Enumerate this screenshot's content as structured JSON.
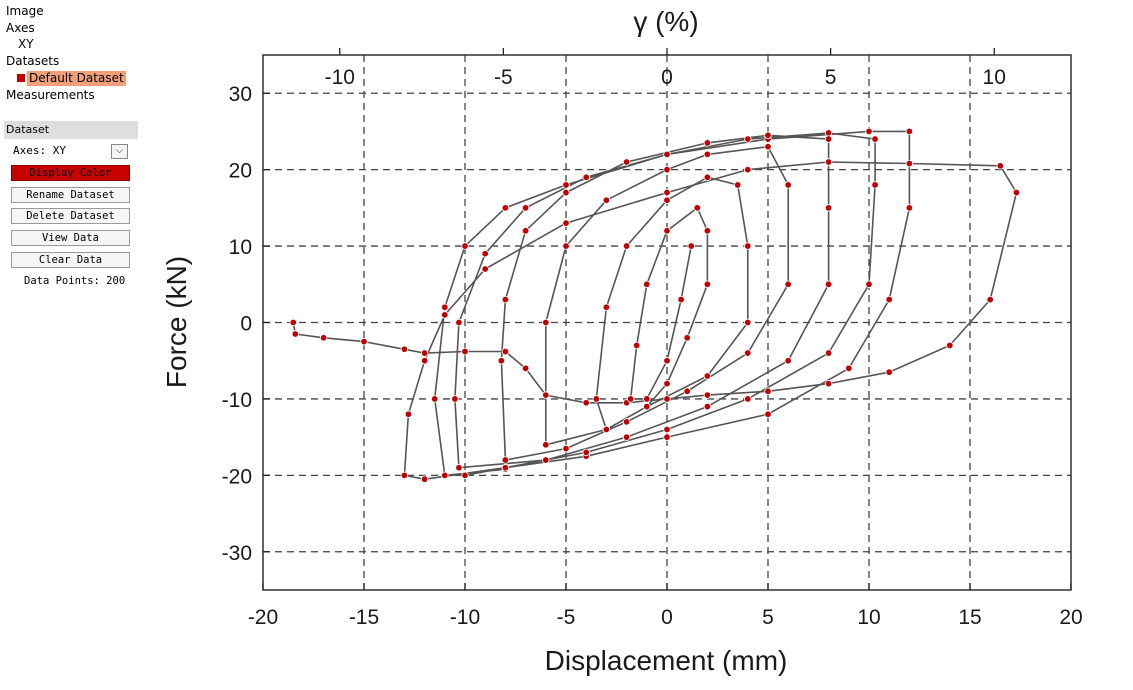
{
  "sidebar": {
    "tree": {
      "image": "Image",
      "axes": "Axes",
      "axes_xy": "XY",
      "datasets": "Datasets",
      "default_dataset": "Default Dataset",
      "measurements": "Measurements"
    },
    "panel": {
      "title": "Dataset",
      "axes_label": "Axes:",
      "axes_value": "XY",
      "display_color": "Display Color",
      "rename": "Rename Dataset",
      "delete": "Delete Dataset",
      "view": "View Data",
      "clear": "Clear Data",
      "data_points": "Data Points: 200"
    },
    "dataset_color": "#c00000"
  },
  "chart_data": {
    "type": "line",
    "xlabel": "Displacement (mm)",
    "ylabel": "Force (kN)",
    "top_label": "γ (%)",
    "xlim": [
      -20,
      20
    ],
    "ylim": [
      -35,
      35
    ],
    "x_ticks": [
      -20,
      -15,
      -10,
      -5,
      0,
      5,
      10,
      15,
      20
    ],
    "y_ticks": [
      -30,
      -20,
      -10,
      0,
      10,
      20,
      30
    ],
    "top_ticks": [
      -10,
      -5,
      0,
      5,
      10
    ],
    "top_axis_scale": "gamma = displacement / 1.62",
    "grid": true,
    "series": [
      {
        "values_xy": [
          [
            -18.5,
            0
          ],
          [
            -18.4,
            -1.5
          ],
          [
            -17,
            -2
          ],
          [
            -15,
            -2.5
          ],
          [
            -13,
            -3.5
          ],
          [
            -12,
            -4
          ],
          [
            -10,
            -3.8
          ],
          [
            -8,
            -3.8
          ],
          [
            -7,
            -6
          ],
          [
            -6,
            -9.5
          ],
          [
            -4,
            -10.5
          ],
          [
            -2,
            -10.5
          ],
          [
            0,
            -10
          ],
          [
            2,
            -9.5
          ],
          [
            5,
            -9
          ],
          [
            8,
            -8
          ],
          [
            11,
            -6.5
          ],
          [
            14,
            -3
          ],
          [
            16,
            3
          ],
          [
            17.3,
            17
          ],
          [
            16.5,
            20.5
          ],
          [
            12,
            20.8
          ],
          [
            8,
            21
          ],
          [
            4,
            20
          ],
          [
            0,
            17
          ],
          [
            -5,
            13
          ],
          [
            -9,
            7
          ],
          [
            -11,
            1
          ],
          [
            -12,
            -5
          ],
          [
            -12.8,
            -12
          ],
          [
            -13,
            -20
          ],
          [
            -12,
            -20.5
          ],
          [
            -8,
            -19
          ],
          [
            -4,
            -17.5
          ],
          [
            0,
            -15
          ],
          [
            5,
            -12
          ],
          [
            9,
            -6
          ],
          [
            11,
            3
          ],
          [
            12,
            15
          ],
          [
            12,
            25
          ],
          [
            10,
            25
          ],
          [
            5,
            24
          ],
          [
            0,
            22
          ],
          [
            -5,
            18
          ],
          [
            -8,
            15
          ],
          [
            -10,
            10
          ],
          [
            -11,
            2
          ],
          [
            -11.5,
            -10
          ],
          [
            -11,
            -20
          ],
          [
            -8,
            -19.2
          ]
        ]
      },
      {
        "values_xy": [
          [
            -10,
            -20
          ],
          [
            -8,
            -19
          ],
          [
            -4,
            -17
          ],
          [
            0,
            -14
          ],
          [
            4,
            -10
          ],
          [
            8,
            -4
          ],
          [
            10,
            5
          ],
          [
            10.3,
            18
          ],
          [
            10.3,
            24
          ],
          [
            8,
            24.8
          ],
          [
            4,
            24
          ],
          [
            0,
            22
          ],
          [
            -4,
            19
          ],
          [
            -7,
            15
          ],
          [
            -9,
            9
          ],
          [
            -10.3,
            0
          ],
          [
            -10.5,
            -10
          ],
          [
            -10.3,
            -19
          ],
          [
            -6,
            -18
          ],
          [
            -2,
            -15
          ],
          [
            2,
            -11
          ],
          [
            6,
            -5
          ],
          [
            8,
            5
          ],
          [
            8,
            15
          ],
          [
            8,
            24
          ],
          [
            5,
            24.5
          ],
          [
            2,
            23.5
          ],
          [
            -2,
            21
          ],
          [
            -5,
            17
          ],
          [
            -7,
            12
          ],
          [
            -8,
            3
          ],
          [
            -8.2,
            -5
          ],
          [
            -8,
            -18
          ],
          [
            -5,
            -16.5
          ],
          [
            -2,
            -13
          ],
          [
            1,
            -9
          ],
          [
            4,
            -4
          ],
          [
            6,
            5
          ],
          [
            6,
            18
          ],
          [
            5,
            23
          ],
          [
            2,
            22
          ],
          [
            0,
            20
          ],
          [
            -3,
            16
          ],
          [
            -5,
            10
          ],
          [
            -6,
            0
          ],
          [
            -6,
            -16
          ],
          [
            -3,
            -14
          ],
          [
            -1,
            -11
          ],
          [
            2,
            -7
          ],
          [
            4,
            0
          ],
          [
            4,
            10
          ],
          [
            3.5,
            18
          ],
          [
            2,
            19
          ],
          [
            0,
            16
          ],
          [
            -2,
            10
          ],
          [
            -3,
            2
          ],
          [
            -3.5,
            -10
          ],
          [
            -3,
            -14
          ],
          [
            -1,
            -11
          ],
          [
            0,
            -8
          ],
          [
            1,
            -2
          ],
          [
            2,
            5
          ],
          [
            2,
            12
          ],
          [
            1.5,
            15
          ],
          [
            0,
            12
          ],
          [
            -1,
            5
          ],
          [
            -1.5,
            -3
          ],
          [
            -1.8,
            -10
          ],
          [
            -1,
            -10
          ],
          [
            0,
            -5
          ],
          [
            0.7,
            3
          ],
          [
            1.2,
            10
          ]
        ]
      }
    ]
  }
}
